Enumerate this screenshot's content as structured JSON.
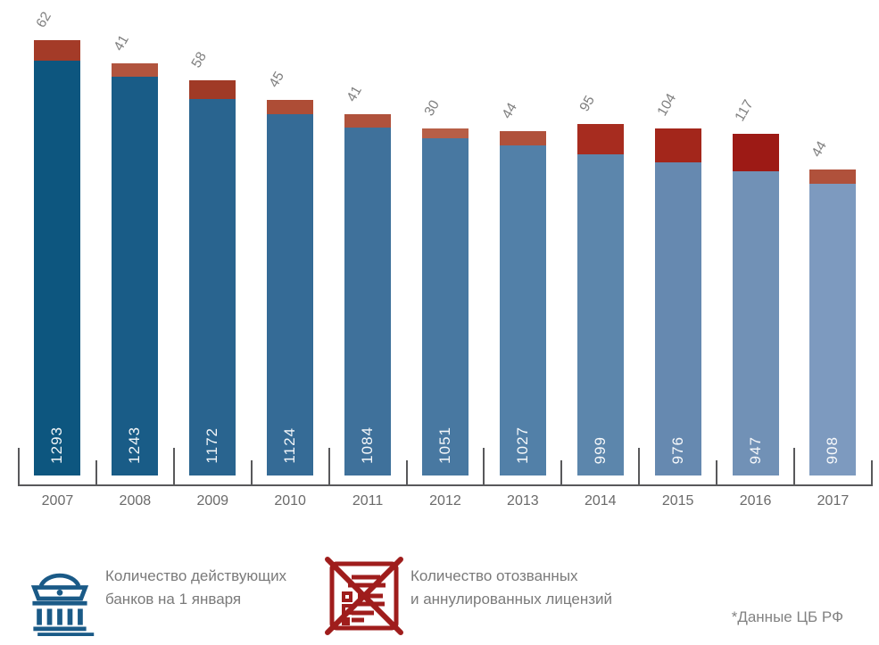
{
  "chart_data": {
    "type": "bar",
    "stacked": true,
    "orientation": "vertical",
    "categories": [
      "2007",
      "2008",
      "2009",
      "2010",
      "2011",
      "2012",
      "2013",
      "2014",
      "2015",
      "2016",
      "2017"
    ],
    "series": [
      {
        "name": "Количество действующих банков на 1 января",
        "values": [
          1293,
          1243,
          1172,
          1124,
          1084,
          1051,
          1027,
          999,
          976,
          947,
          908
        ],
        "colors": [
          "#0d567f",
          "#195c87",
          "#29648f",
          "#356b96",
          "#3f719b",
          "#4878a1",
          "#5280a8",
          "#5c86ac",
          "#6689b0",
          "#7191b6",
          "#7d9abf"
        ]
      },
      {
        "name": "Количество отозванных и аннулированных лицензий",
        "values": [
          62,
          41,
          58,
          45,
          41,
          30,
          44,
          95,
          104,
          117,
          44
        ],
        "colors": [
          "#a43b28",
          "#b1543e",
          "#a03a26",
          "#ae4d36",
          "#b0523c",
          "#b75f47",
          "#b0513b",
          "#a72c1f",
          "#a3261b",
          "#9d1a15",
          "#b0513b"
        ]
      }
    ],
    "ylim": [
      0,
      1360
    ],
    "grid": false,
    "legend_position": "bottom",
    "value_label_style": {
      "banks": "white vertical label inside bar bottom",
      "licenses": "gray diagonal label above bar top"
    }
  },
  "colors": {
    "axis": "#59595b",
    "year_label": "#6a6a6a",
    "top_label": "#7f7f7f",
    "bar_value": "#ffffff",
    "bank_icon": "#1a5a87",
    "license_icon": "#9f1d1c"
  },
  "legend": {
    "items": [
      {
        "icon": "bank-building-icon",
        "line1": "Количество действующих",
        "line2": "банков на 1 января"
      },
      {
        "icon": "revoked-license-icon",
        "line1": "Количество отозванных",
        "line2": "и аннулированных лицензий"
      }
    ]
  },
  "footnote": "*Данные ЦБ РФ"
}
